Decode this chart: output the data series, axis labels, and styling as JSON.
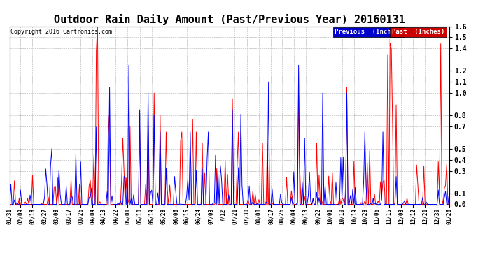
{
  "title": "Outdoor Rain Daily Amount (Past/Previous Year) 20160131",
  "copyright": "Copyright 2016 Cartronics.com",
  "legend_previous": "Previous  (Inches)",
  "legend_past": "Past  (Inches)",
  "blue_color": "#0000FF",
  "red_color": "#FF0000",
  "blue_bg": "#0000CC",
  "red_bg": "#CC0000",
  "ylim": [
    0.0,
    1.6
  ],
  "yticks": [
    0.0,
    0.1,
    0.3,
    0.4,
    0.5,
    0.7,
    0.8,
    1.0,
    1.1,
    1.2,
    1.4,
    1.5,
    1.6
  ],
  "background_color": "#ffffff",
  "grid_color": "#999999",
  "title_fontsize": 11,
  "num_points": 366,
  "tick_labels": [
    "01/31",
    "02/09",
    "02/18",
    "02/27",
    "03/08",
    "03/17",
    "03/26",
    "04/04",
    "04/13",
    "04/22",
    "05/01",
    "05/10",
    "05/19",
    "05/28",
    "06/06",
    "06/15",
    "06/24",
    "07/03",
    "7/12",
    "07/21",
    "07/30",
    "08/08",
    "08/17",
    "08/26",
    "09/04",
    "09/13",
    "09/22",
    "10/01",
    "10/10",
    "10/19",
    "10/28",
    "11/06",
    "11/15",
    "12/03",
    "12/12",
    "12/21",
    "12/30",
    "01/26"
  ]
}
